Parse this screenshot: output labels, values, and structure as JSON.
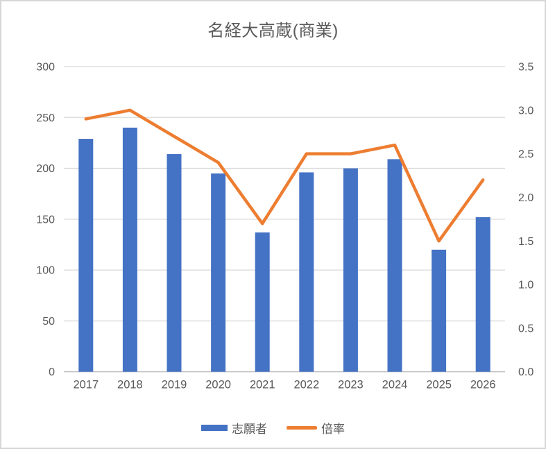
{
  "window": {
    "background": "#ffffff",
    "border_color": "#d6d6d6"
  },
  "chart_data": {
    "type": "bar+line combo",
    "title": "名経大高蔵(商業)",
    "categories": [
      "2017",
      "2018",
      "2019",
      "2020",
      "2021",
      "2022",
      "2023",
      "2024",
      "2025",
      "2026"
    ],
    "series": [
      {
        "name": "志願者",
        "type": "bar",
        "axis": "left",
        "color": "#4472C4",
        "values": [
          229,
          240,
          214,
          195,
          137,
          196,
          200,
          209,
          120,
          152
        ]
      },
      {
        "name": "倍率",
        "type": "line",
        "axis": "right",
        "color": "#ED7D31",
        "values": [
          2.9,
          3.0,
          2.7,
          2.4,
          1.7,
          2.5,
          2.5,
          2.6,
          1.5,
          2.2
        ]
      }
    ],
    "left_axis": {
      "min": 0,
      "max": 300,
      "step": 50,
      "ticks": [
        "0",
        "50",
        "100",
        "150",
        "200",
        "250",
        "300"
      ]
    },
    "right_axis": {
      "min": 0,
      "max": 3.5,
      "step": 0.5,
      "ticks": [
        "0.0",
        "0.5",
        "1.0",
        "1.5",
        "2.0",
        "2.5",
        "3.0",
        "3.5"
      ]
    },
    "grid": true,
    "legend_position": "bottom",
    "text_color": "#595959",
    "gridline_color": "#d9d9d9",
    "axisline_color": "#bfbfbf"
  }
}
